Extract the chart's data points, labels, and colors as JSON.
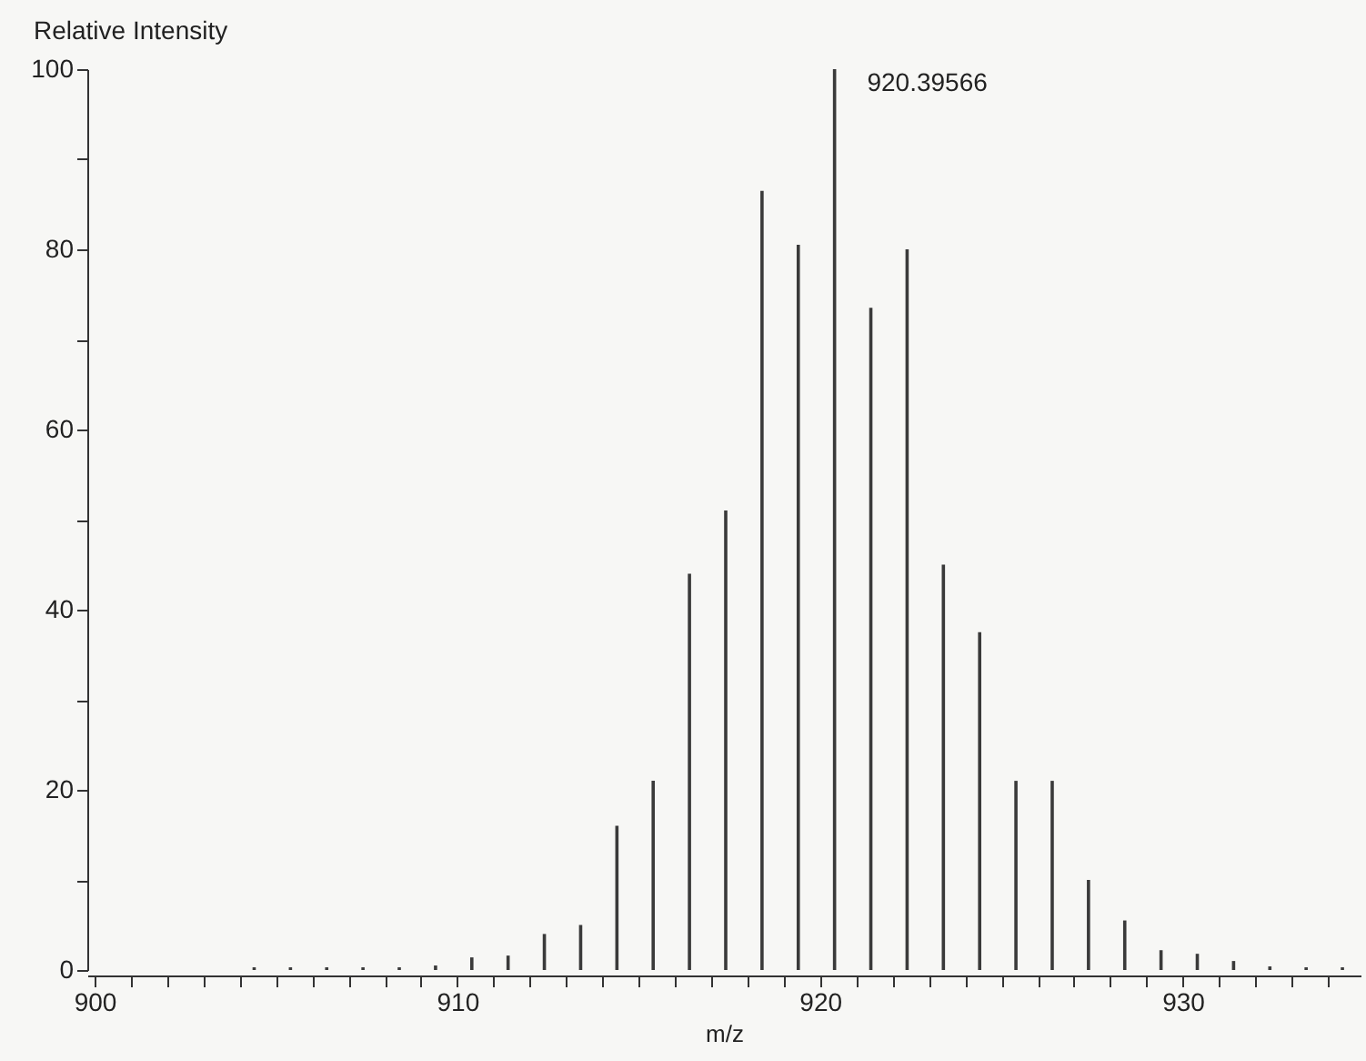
{
  "chart_data": {
    "type": "bar",
    "xlabel": "m/z",
    "ylabel": "Relative Intensity",
    "color": "#3a3a3a",
    "x": [
      904.4,
      905.4,
      906.4,
      907.4,
      908.4,
      909.4,
      910.4,
      911.4,
      912.4,
      913.4,
      914.4,
      915.4,
      916.4,
      917.4,
      918.4,
      919.4,
      920.4,
      921.4,
      922.4,
      923.4,
      924.4,
      925.4,
      926.4,
      927.4,
      928.4,
      929.4,
      930.4,
      931.4,
      932.4,
      933.4,
      934.4
    ],
    "values": [
      0.3,
      0.3,
      0.3,
      0.3,
      0.3,
      0.5,
      1.4,
      1.6,
      4,
      5,
      16,
      21,
      44,
      51,
      86.5,
      80.5,
      100,
      73.5,
      80,
      45,
      37.5,
      21,
      21,
      10,
      5.5,
      2.2,
      1.8,
      1,
      0.4,
      0.3,
      0.3
    ],
    "xlim": [
      899.8,
      934.9
    ],
    "ylim": [
      0,
      100
    ],
    "xticks": [
      900,
      {
        "value": 901,
        "label": null
      },
      {
        "value": 902,
        "label": null
      },
      {
        "value": 903,
        "label": null
      },
      {
        "value": 904,
        "label": null
      },
      {
        "value": 905,
        "label": null
      },
      {
        "value": 906,
        "label": null
      },
      {
        "value": 907,
        "label": null
      },
      {
        "value": 908,
        "label": null
      },
      {
        "value": 909,
        "label": null
      },
      910,
      {
        "value": 911,
        "label": null
      },
      {
        "value": 912,
        "label": null
      },
      {
        "value": 913,
        "label": null
      },
      {
        "value": 914,
        "label": null
      },
      {
        "value": 915,
        "label": null
      },
      {
        "value": 916,
        "label": null
      },
      {
        "value": 917,
        "label": null
      },
      {
        "value": 918,
        "label": null
      },
      {
        "value": 919,
        "label": null
      },
      920,
      {
        "value": 921,
        "label": null
      },
      {
        "value": 922,
        "label": null
      },
      {
        "value": 923,
        "label": null
      },
      {
        "value": 924,
        "label": null
      },
      {
        "value": 925,
        "label": null
      },
      {
        "value": 926,
        "label": null
      },
      {
        "value": 927,
        "label": null
      },
      {
        "value": 928,
        "label": null
      },
      {
        "value": 929,
        "label": null
      },
      930,
      {
        "value": 931,
        "label": null
      },
      {
        "value": 932,
        "label": null
      },
      {
        "value": 933,
        "label": null
      },
      {
        "value": 934,
        "label": null
      }
    ],
    "yticks": [
      0,
      {
        "value": 10,
        "label": null
      },
      20,
      {
        "value": 30,
        "label": null
      },
      40,
      {
        "value": 50,
        "label": null
      },
      60,
      {
        "value": 70,
        "label": null
      },
      80,
      {
        "value": 90,
        "label": null
      },
      100
    ],
    "annotations": [
      {
        "text": "920.39566",
        "x": 920.39566,
        "y": 100
      }
    ]
  }
}
